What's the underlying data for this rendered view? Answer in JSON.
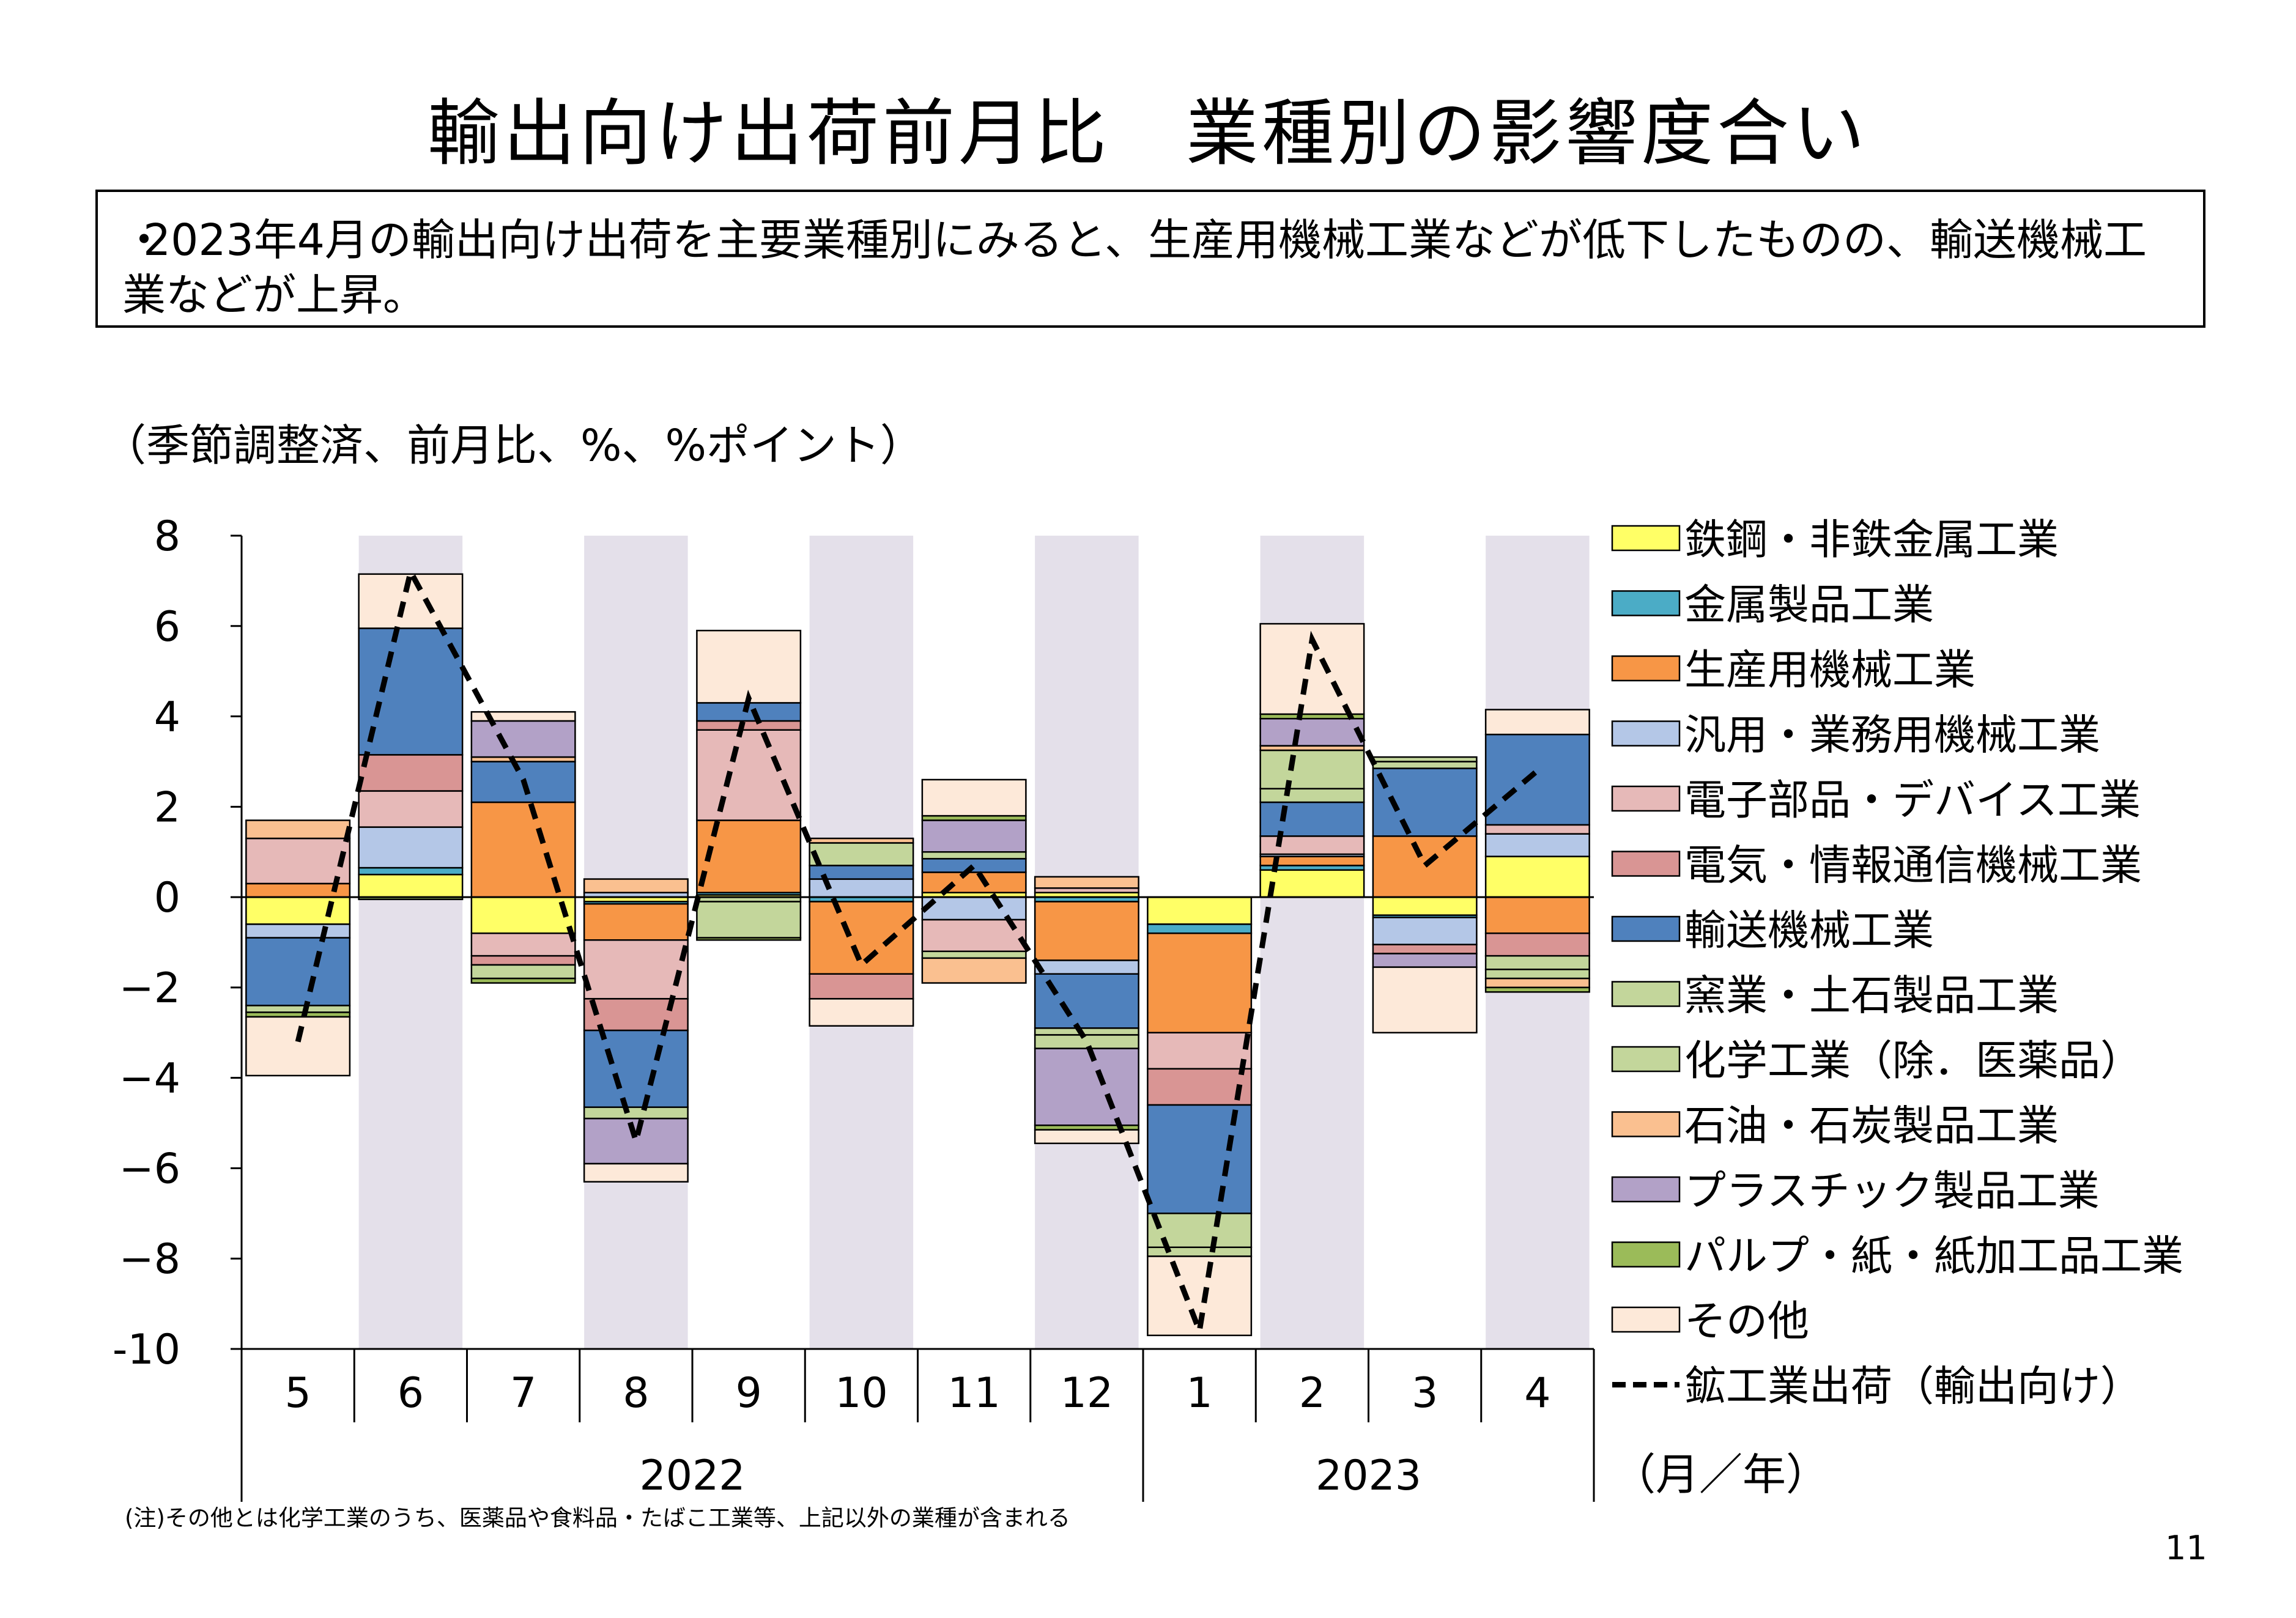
{
  "title": "輸出向け出荷前月比　業種別の影響度合い",
  "summary": {
    "bullet": "・",
    "text": "2023年4月の輸出向け出荷を主要業種別にみると、生産用機械工業などが低下したものの、輸送機械工業などが上昇。"
  },
  "unit_note": "（季節調整済、前月比、%、%ポイント）",
  "footnote": "(注)その他とは化学工業のうち、医薬品や食料品・たばこ工業等、上記以外の業種が含まれる",
  "page_number": "11",
  "colors": {
    "shaded_band": "#e4e0ea",
    "line": "#000000",
    "bar_outline": "#000000"
  },
  "chart_data": {
    "type": "bar",
    "subtype": "stacked bar with line overlay",
    "categories": [
      "5",
      "6",
      "7",
      "8",
      "9",
      "10",
      "11",
      "12",
      "1",
      "2",
      "3",
      "4"
    ],
    "year_groups": [
      {
        "label": "2022",
        "span": 8
      },
      {
        "label": "2023",
        "span": 4
      }
    ],
    "x_unit_label": "（月／年）",
    "ylim": [
      -10,
      8
    ],
    "yticks": [
      8,
      6,
      4,
      2,
      0,
      -2,
      -4,
      -6,
      -8,
      -10
    ],
    "ytick_labels": [
      "8",
      "6",
      "4",
      "2",
      "0",
      "−2",
      "−4",
      "−6",
      "−8",
      "-10"
    ],
    "shaded_categories": [
      1,
      3,
      5,
      7,
      9,
      11
    ],
    "legend_placement": "right",
    "series": [
      {
        "name": "鉄鋼・非鉄金属工業",
        "color": "#ffff66",
        "values": [
          -0.6,
          0.5,
          -0.8,
          -0.1,
          0.05,
          0.0,
          0.1,
          0.1,
          -0.6,
          0.6,
          -0.4,
          0.9
        ]
      },
      {
        "name": "金属製品工業",
        "color": "#4bacc6",
        "values": [
          0.0,
          0.15,
          0.0,
          -0.05,
          0.05,
          -0.1,
          0.0,
          -0.1,
          -0.2,
          0.1,
          -0.05,
          0.0
        ]
      },
      {
        "name": "生産用機械工業",
        "color": "#f79646",
        "values": [
          0.3,
          0.0,
          2.1,
          -0.8,
          1.6,
          -1.6,
          0.45,
          -1.3,
          -2.2,
          0.2,
          1.35,
          -0.8
        ]
      },
      {
        "name": "汎用・業務用機械工業",
        "color": "#b4c7e7",
        "values": [
          -0.3,
          0.9,
          0.0,
          0.1,
          0.0,
          0.4,
          -0.5,
          -0.3,
          0.0,
          0.05,
          -0.6,
          0.5
        ]
      },
      {
        "name": "電子部品・デバイス工業",
        "color": "#e6b9b8",
        "values": [
          1.0,
          0.8,
          -0.5,
          -1.3,
          2.0,
          0.0,
          -0.7,
          0.1,
          -0.8,
          0.4,
          0.0,
          0.2
        ]
      },
      {
        "name": "電気・情報通信機械工業",
        "color": "#d99594",
        "values": [
          0.0,
          0.8,
          -0.2,
          -0.7,
          0.2,
          -0.55,
          0.0,
          0.0,
          -0.8,
          0.0,
          -0.2,
          -0.5
        ]
      },
      {
        "name": "輸送機械工業",
        "color": "#4f81bd",
        "values": [
          -1.5,
          2.8,
          0.9,
          -1.7,
          0.4,
          0.3,
          0.3,
          -1.2,
          -2.4,
          0.75,
          1.5,
          2.0
        ]
      },
      {
        "name": "窯業・土石製品工業",
        "color": "#c3d69b",
        "values": [
          -0.15,
          0.0,
          0.0,
          0.0,
          -0.1,
          0.5,
          0.15,
          -0.15,
          -0.75,
          0.3,
          0.15,
          -0.3
        ]
      },
      {
        "name": "化学工業（除．医薬品）",
        "color": "#c3d69b",
        "values": [
          0.0,
          0.0,
          -0.3,
          -0.25,
          -0.8,
          0.0,
          -0.15,
          -0.3,
          -0.2,
          0.85,
          0.1,
          -0.2
        ]
      },
      {
        "name": "石油・石炭製品工業",
        "color": "#fac090",
        "values": [
          0.4,
          0.0,
          0.1,
          0.3,
          0.0,
          0.1,
          -0.55,
          0.25,
          0.0,
          0.1,
          0.0,
          -0.2
        ]
      },
      {
        "name": "プラスチック製品工業",
        "color": "#b2a1c7",
        "values": [
          0.0,
          0.0,
          0.8,
          -1.0,
          0.0,
          0.0,
          0.7,
          -1.7,
          0.0,
          0.6,
          -0.3,
          0.0
        ]
      },
      {
        "name": "パルプ・紙・紙加工品工業",
        "color": "#9bbb59",
        "values": [
          -0.1,
          -0.05,
          -0.1,
          0.0,
          -0.05,
          0.0,
          0.1,
          -0.1,
          0.0,
          0.1,
          0.0,
          -0.1
        ]
      },
      {
        "name": "その他",
        "color": "#fde9d9",
        "values": [
          -1.3,
          1.2,
          0.2,
          -0.4,
          1.6,
          -0.6,
          0.8,
          -0.3,
          -1.75,
          2.0,
          -1.45,
          0.55
        ]
      }
    ],
    "line": {
      "name": "鉱工業出荷（輸出向け）",
      "style": "dashed",
      "color": "#000000",
      "values": [
        -3.2,
        7.2,
        2.6,
        -5.4,
        4.4,
        -1.5,
        0.7,
        -3.2,
        -9.6,
        5.7,
        0.7,
        2.8
      ]
    }
  }
}
